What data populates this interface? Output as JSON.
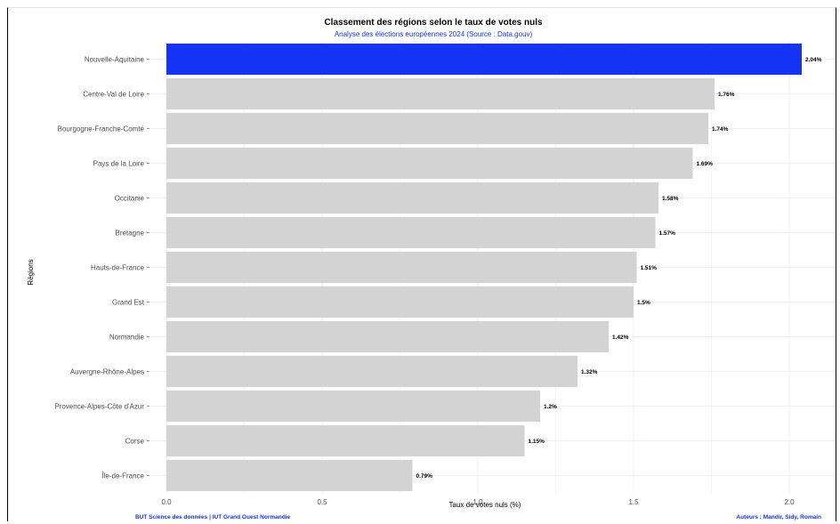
{
  "chart_data": {
    "type": "bar",
    "orientation": "horizontal",
    "title": "Classement des régions selon le taux de votes nuls",
    "subtitle": "Analyse des élections européennes 2024 (Source : Data.gouv)",
    "xlabel": "Taux de votes nuls (%)",
    "ylabel": "Régions",
    "xlim": [
      0,
      2.1
    ],
    "xticks": [
      0.0,
      0.5,
      1.0,
      1.5,
      2.0
    ],
    "xtick_labels": [
      "0.0",
      "0.5",
      "1.0",
      "1.5",
      "2.0"
    ],
    "grid": true,
    "legend": "none",
    "categories": [
      "Nouvelle-Aquitaine",
      "Centre-Val de Loire",
      "Bourgogne-Franche-Comté",
      "Pays de la Loire",
      "Occitanie",
      "Bretagne",
      "Hauts-de-France",
      "Grand Est",
      "Normandie",
      "Auvergne-Rhône-Alpes",
      "Provence-Alpes-Côte d'Azur",
      "Corse",
      "Île-de-France"
    ],
    "values": [
      2.04,
      1.76,
      1.74,
      1.69,
      1.58,
      1.57,
      1.51,
      1.5,
      1.42,
      1.32,
      1.2,
      1.15,
      0.79
    ],
    "value_labels": [
      "2.04%",
      "1.76%",
      "1.74%",
      "1.69%",
      "1.58%",
      "1.57%",
      "1.51%",
      "1.5%",
      "1.42%",
      "1.32%",
      "1.2%",
      "1.15%",
      "0.79%"
    ],
    "highlight": "Nouvelle-Aquitaine",
    "colors": {
      "highlight": "#1533f5",
      "default": "#d3d3d3",
      "grid": "#ebebeb",
      "accent_text": "#1533f5"
    },
    "caption_left": "BUT Science des données | IUT Grand Ouest Normandie",
    "caption_right": "Auteurs : Mandir, Sidy, Romain"
  }
}
